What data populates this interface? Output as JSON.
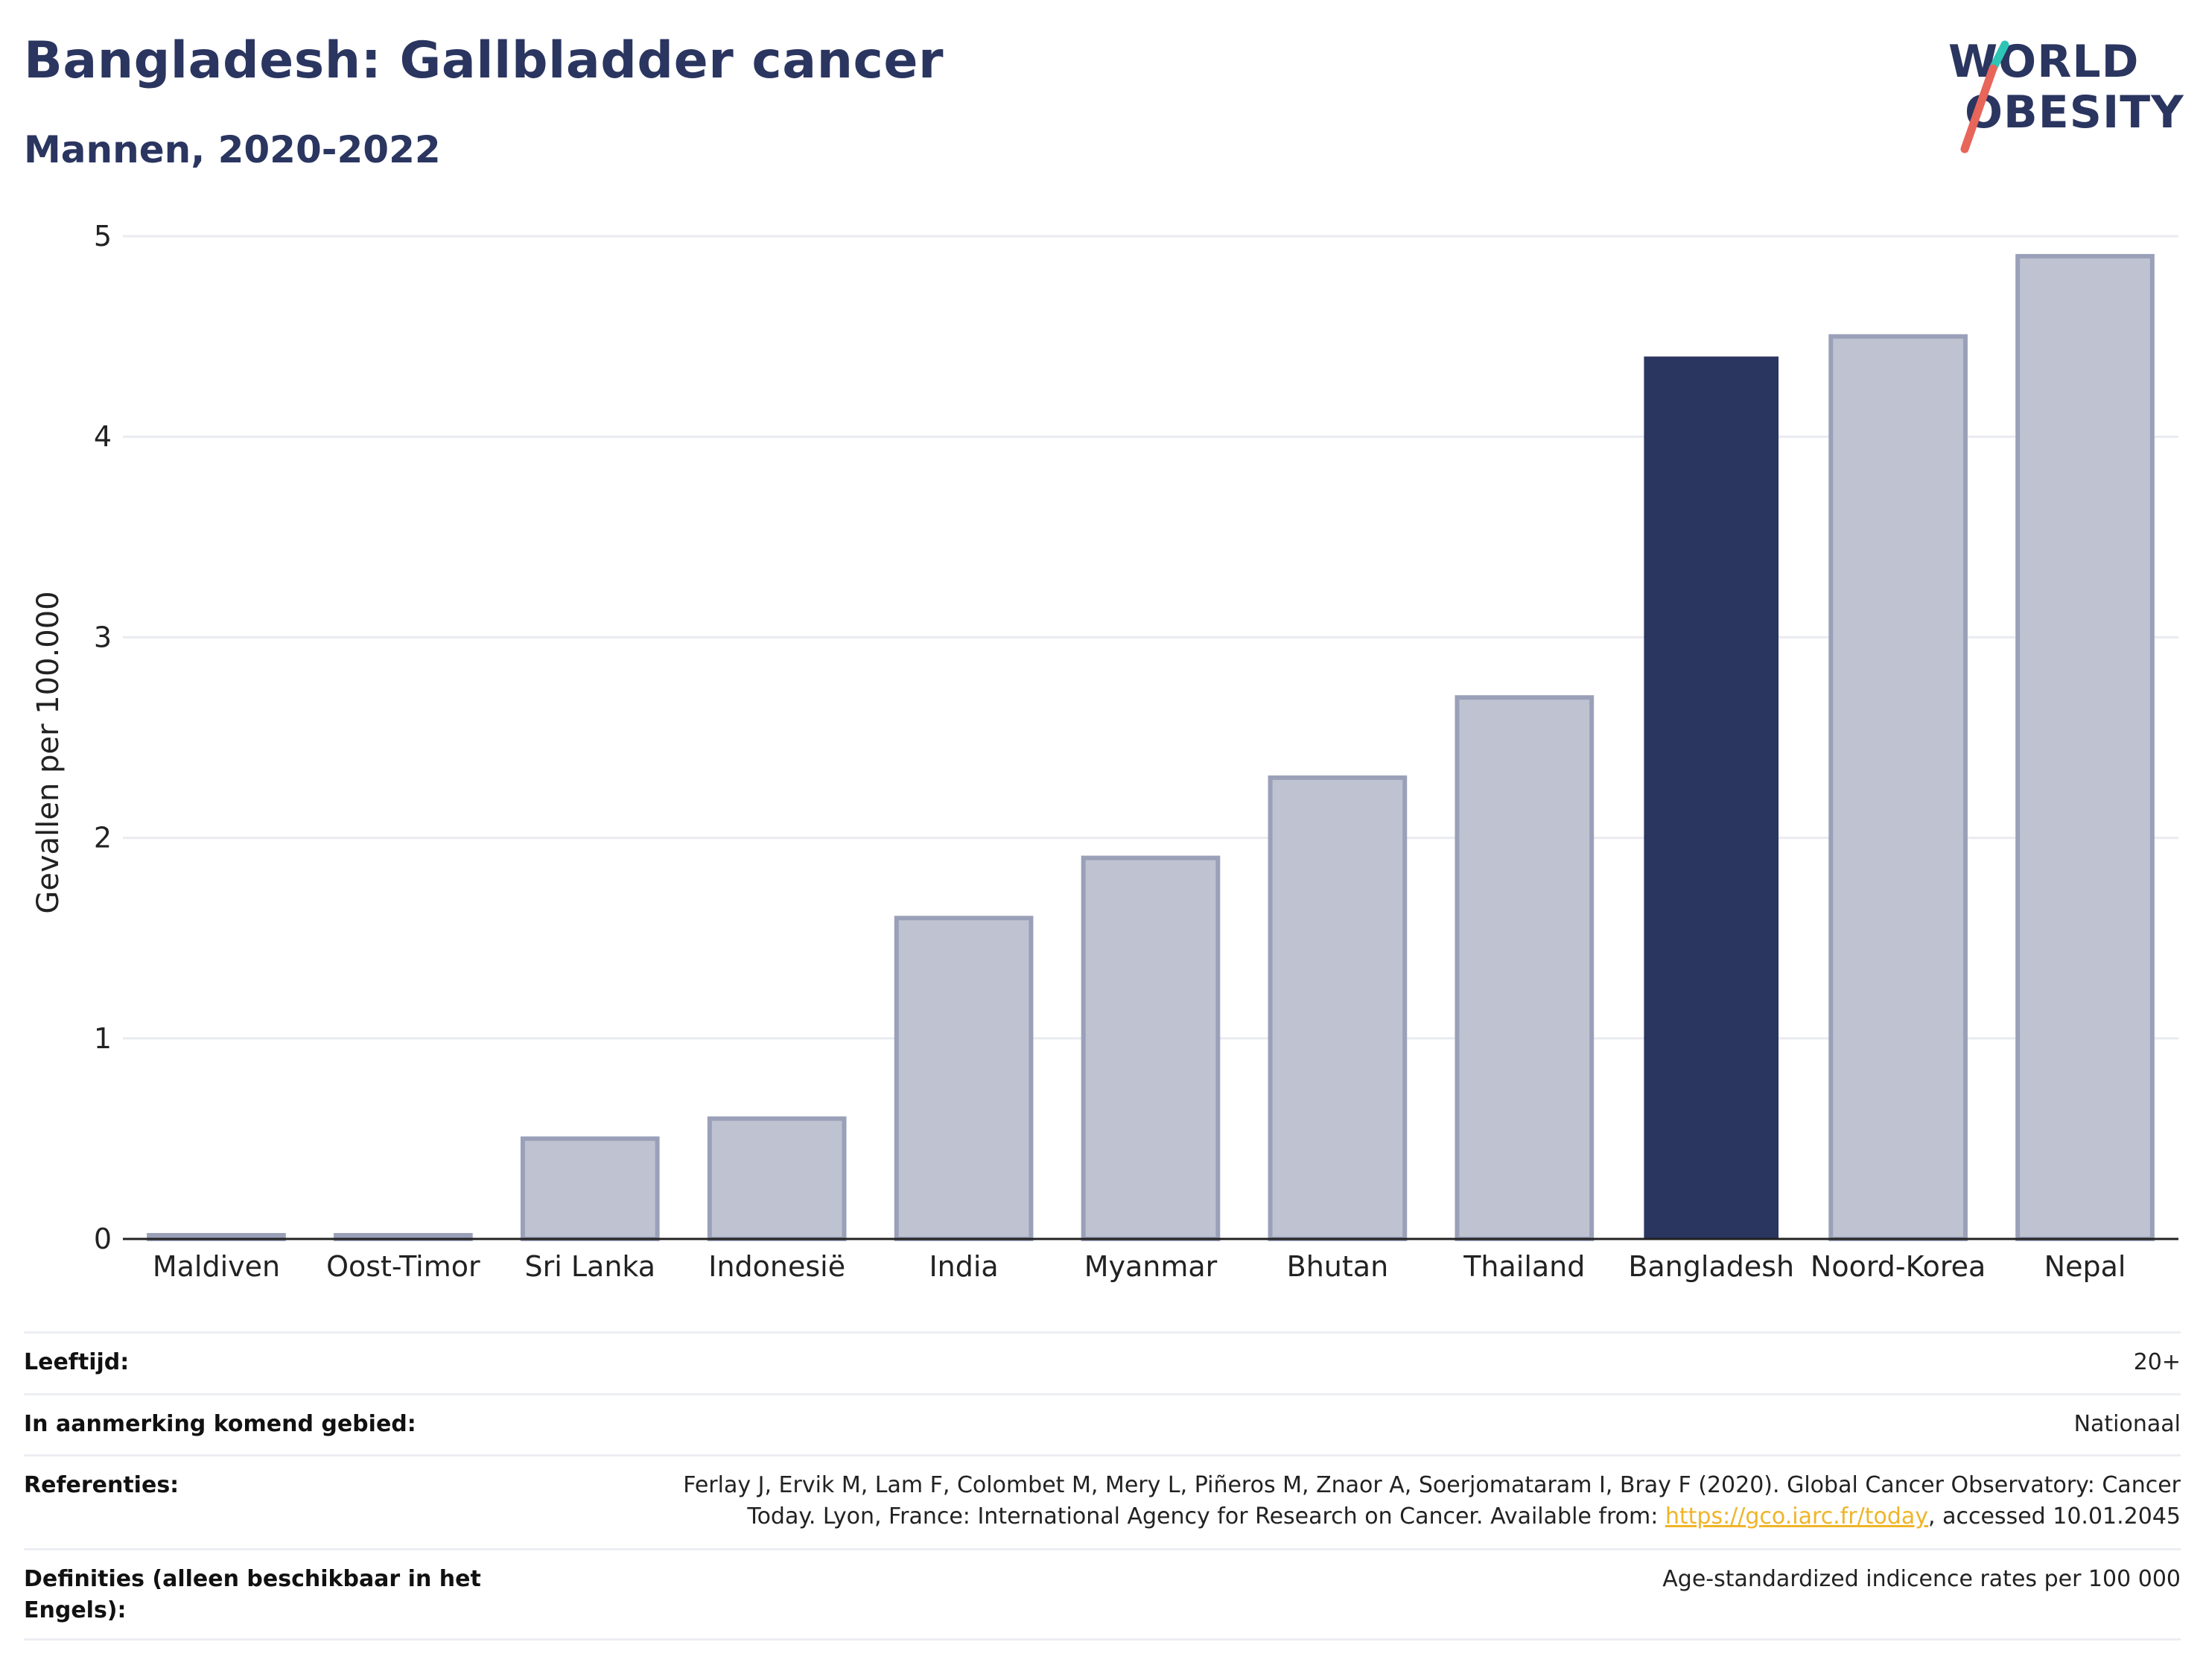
{
  "header": {
    "title": "Bangladesh: Gallbladder cancer",
    "subtitle": "Mannen, 2020-2022"
  },
  "logo": {
    "line1": "WORLD",
    "line2": "OBESITY",
    "text_color": "#2a3560",
    "slash_colors": [
      "#2ec4b6",
      "#e8655a"
    ]
  },
  "chart_data": {
    "type": "bar",
    "categories": [
      "Maldiven",
      "Oost-Timor",
      "Sri Lanka",
      "Indonesië",
      "India",
      "Myanmar",
      "Bhutan",
      "Thailand",
      "Bangladesh",
      "Noord-Korea",
      "Nepal"
    ],
    "values": [
      0.0,
      0.0,
      0.5,
      0.6,
      1.6,
      1.9,
      2.3,
      2.7,
      4.4,
      4.5,
      4.9
    ],
    "highlight": "Bangladesh",
    "ylabel": "Gevallen per 100.000",
    "ylim": [
      0,
      5
    ],
    "yticks": [
      0,
      1,
      2,
      3,
      4,
      5
    ],
    "grid": true,
    "colors": {
      "bar": "#bfc3d1",
      "bar_stroke": "#9aa0b8",
      "highlight": "#2a3560",
      "grid": "#e9ebf1",
      "axis": "#222222"
    }
  },
  "info": {
    "age_label": "Leeftijd:",
    "age_value": "20+",
    "area_label": "In aanmerking komend gebied:",
    "area_value": "Nationaal",
    "ref_label": "Referenties:",
    "ref_text_1": "Ferlay J, Ervik M, Lam F, Colombet M, Mery L, Piñeros M, Znaor A, Soerjomataram I, Bray F (2020). Global Cancer Observatory: Cancer",
    "ref_text_2": "Today. Lyon, France: International Agency for Research on Cancer. Available from: ",
    "ref_link": "https://gco.iarc.fr/today",
    "ref_text_3": ", accessed 10.01.2045",
    "def_label": "Definities (alleen beschikbaar in het Engels):",
    "def_value": "Age-standardized indicence rates per 100 000"
  }
}
